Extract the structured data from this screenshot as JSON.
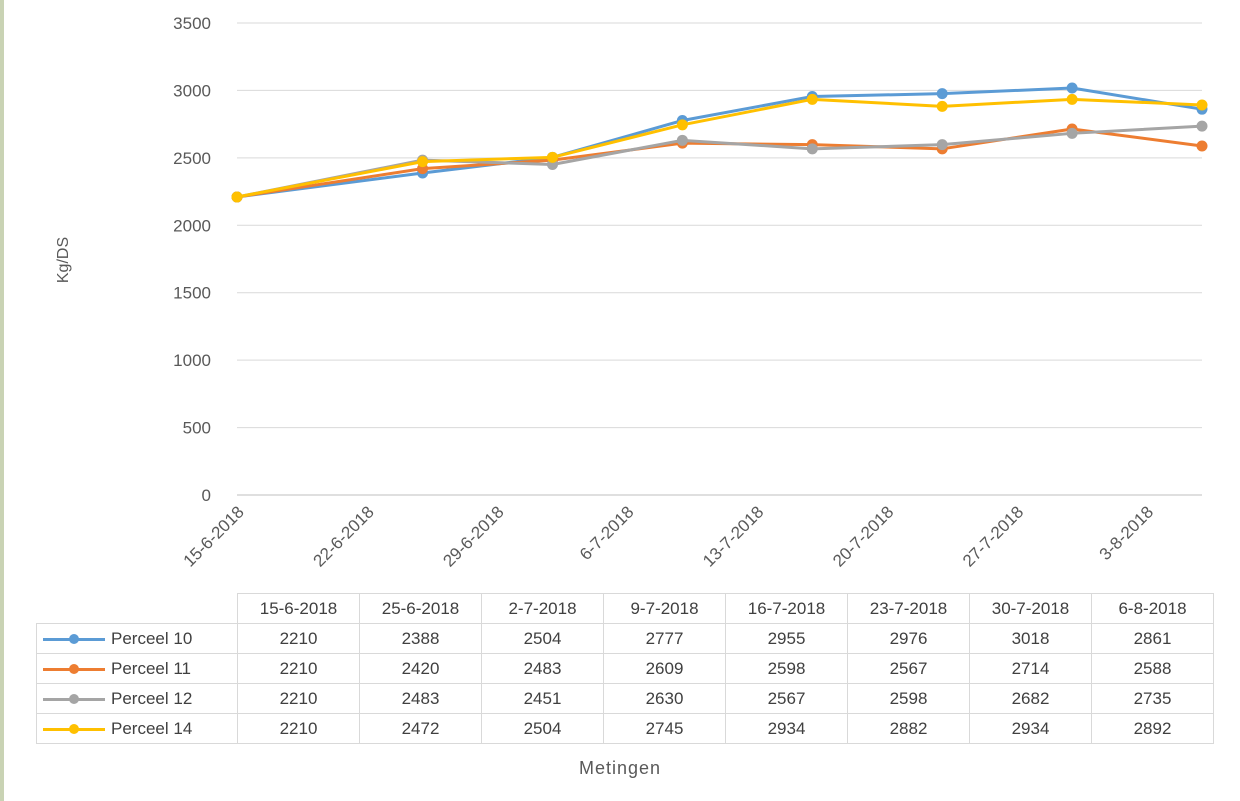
{
  "chart_data": {
    "type": "line",
    "xlabel": "Metingen",
    "ylabel": "Kg/DS",
    "ylim": [
      0,
      3500
    ],
    "yticks": [
      0,
      500,
      1000,
      1500,
      2000,
      2500,
      3000,
      3500
    ],
    "grid": true,
    "legend": "data-table",
    "axis_ticks": [
      "15-6-2018",
      "22-6-2018",
      "29-6-2018",
      "6-7-2018",
      "13-7-2018",
      "20-7-2018",
      "27-7-2018",
      "3-8-2018"
    ],
    "axis_tick_days": [
      0,
      7,
      14,
      21,
      28,
      35,
      42,
      49
    ],
    "x": [
      "15-6-2018",
      "25-6-2018",
      "2-7-2018",
      "9-7-2018",
      "16-7-2018",
      "23-7-2018",
      "30-7-2018",
      "6-8-2018"
    ],
    "x_days": [
      0,
      10,
      17,
      24,
      31,
      38,
      45,
      52
    ],
    "series": [
      {
        "name": "Perceel 10",
        "color": "#5b9bd5",
        "values": [
          2210,
          2388,
          2504,
          2777,
          2955,
          2976,
          3018,
          2861
        ]
      },
      {
        "name": "Perceel 11",
        "color": "#ed7d31",
        "values": [
          2210,
          2420,
          2483,
          2609,
          2598,
          2567,
          2714,
          2588
        ]
      },
      {
        "name": "Perceel 12",
        "color": "#a5a5a5",
        "values": [
          2210,
          2483,
          2451,
          2630,
          2567,
          2598,
          2682,
          2735
        ]
      },
      {
        "name": "Perceel 14",
        "color": "#ffc000",
        "values": [
          2210,
          2472,
          2504,
          2745,
          2934,
          2882,
          2934,
          2892
        ]
      }
    ]
  }
}
